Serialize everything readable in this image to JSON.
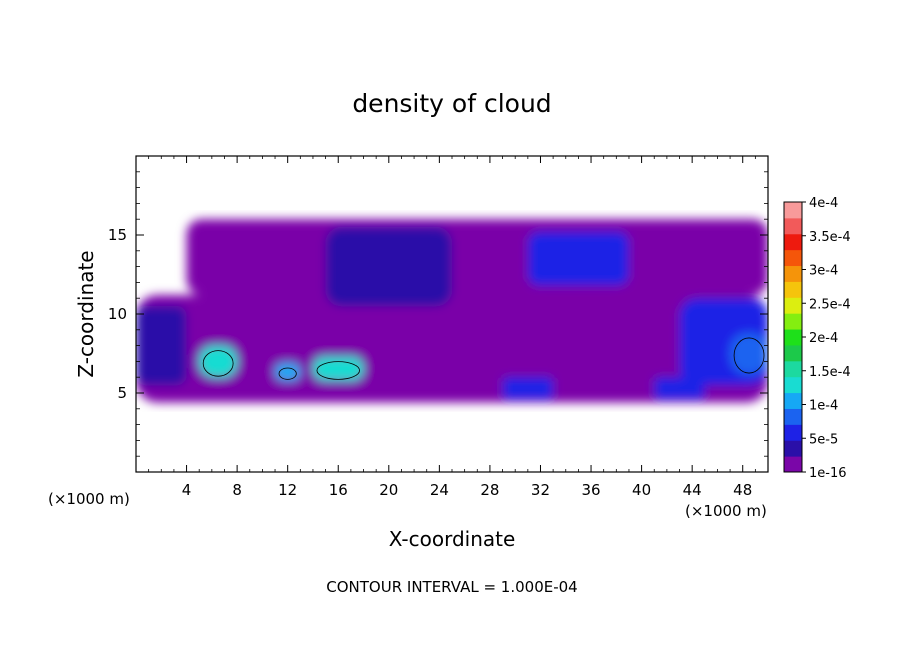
{
  "chart_data": {
    "type": "heatmap",
    "title": "density of cloud",
    "xlabel": "X-coordinate",
    "ylabel": "Z-coordinate",
    "x_unit_left": "(×1000 m)",
    "x_unit_right": "(×1000 m)",
    "footer": "CONTOUR INTERVAL = 1.000E-04",
    "xlim": [
      0,
      50
    ],
    "ylim": [
      0,
      20
    ],
    "x_ticks": [
      4,
      8,
      12,
      16,
      20,
      24,
      28,
      32,
      36,
      40,
      44,
      48
    ],
    "y_ticks": [
      5,
      10,
      15
    ],
    "colorbar": {
      "labels": [
        "1e-16",
        "5e-5",
        "1e-4",
        "1.5e-4",
        "2e-4",
        "2.5e-4",
        "3e-4",
        "3.5e-4",
        "4e-4"
      ],
      "level_colors": [
        "#7a06a8",
        "#2a0fa8",
        "#1e22e6",
        "#1b63f0",
        "#16a8f5",
        "#19dcd2",
        "#1cd9a0",
        "#1cc94a",
        "#1ee01a",
        "#84ee10",
        "#dcee10",
        "#f5c40c",
        "#f5940a",
        "#f5560a",
        "#ee1a0e",
        "#f25a5a",
        "#f89a9a"
      ]
    },
    "contour_line_value": "1e-4",
    "regions": [
      {
        "level": 0,
        "x": [
          0,
          50
        ],
        "z": [
          4.4,
          11.2
        ]
      },
      {
        "level": 0,
        "x": [
          4,
          50
        ],
        "z": [
          11.2,
          16.0
        ]
      },
      {
        "level": 1,
        "x": [
          0,
          4
        ],
        "z": [
          5.5,
          10.5
        ]
      },
      {
        "level": 1,
        "x": [
          15,
          25
        ],
        "z": [
          10.5,
          15.5
        ]
      },
      {
        "level": 2,
        "x": [
          31,
          39
        ],
        "z": [
          11.8,
          15.2
        ]
      },
      {
        "level": 2,
        "x": [
          43,
          50
        ],
        "z": [
          5.5,
          11.0
        ]
      },
      {
        "level": 5,
        "x": [
          5,
          8
        ],
        "z": [
          6.0,
          8.0
        ]
      },
      {
        "level": 4,
        "x": [
          11,
          13
        ],
        "z": [
          5.8,
          6.9
        ]
      },
      {
        "level": 5,
        "x": [
          14,
          18
        ],
        "z": [
          5.8,
          7.3
        ]
      },
      {
        "level": 2,
        "x": [
          29,
          33
        ],
        "z": [
          4.6,
          6.0
        ]
      },
      {
        "level": 2,
        "x": [
          41,
          45
        ],
        "z": [
          4.6,
          6.0
        ]
      },
      {
        "level": 3,
        "x": [
          47,
          50
        ],
        "z": [
          6.2,
          8.8
        ]
      }
    ]
  }
}
